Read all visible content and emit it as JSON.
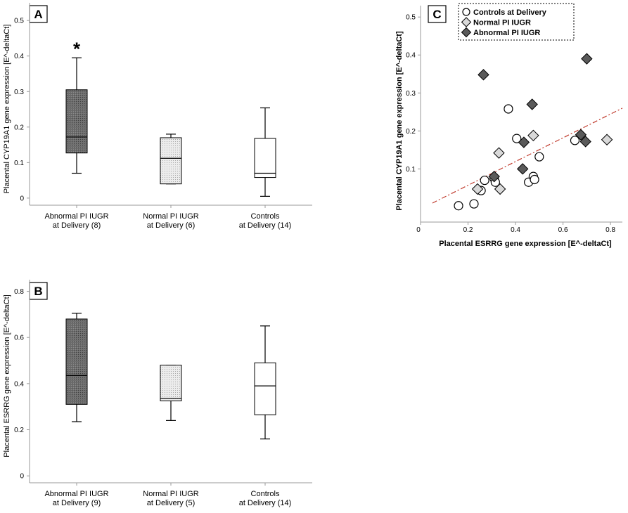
{
  "colors": {
    "abnormal": "#5a5a5a",
    "normal": "#d9d9d9",
    "control": "#ffffff",
    "regression": "#c0392b",
    "axis": "#9a9a9a"
  },
  "chart_data": [
    {
      "panel": "A",
      "type": "box",
      "ylabel": "Placental CYP19A1 gene expression [E^-deltaCt]",
      "ylim": [
        -0.02,
        0.53
      ],
      "yticks": [
        0,
        0.1,
        0.2,
        0.3,
        0.4,
        0.5
      ],
      "ytick_labels": [
        "0",
        "0.1",
        "0.2",
        "0.3",
        "0.4",
        "0.5"
      ],
      "categories": [
        {
          "line1": "Abnormal PI IUGR",
          "line2": "at Delivery (8)"
        },
        {
          "line1": "Normal PI IUGR",
          "line2": "at Delivery (6)"
        },
        {
          "line1": "Controls",
          "line2": "at Delivery (14)"
        }
      ],
      "boxes": [
        {
          "group": "abnormal",
          "whisker_low": 0.07,
          "q1": 0.127,
          "median": 0.172,
          "q3": 0.305,
          "whisker_high": 0.395
        },
        {
          "group": "normal",
          "whisker_low": 0.04,
          "q1": 0.04,
          "median": 0.112,
          "q3": 0.17,
          "whisker_high": 0.18
        },
        {
          "group": "control",
          "whisker_low": 0.005,
          "q1": 0.058,
          "median": 0.07,
          "q3": 0.168,
          "whisker_high": 0.254
        }
      ],
      "annotation": {
        "text": "*",
        "category_index": 0,
        "value": 0.43
      }
    },
    {
      "panel": "B",
      "type": "box",
      "ylabel": "Placental ESRRG gene expression [E^-deltaCt]",
      "ylim": [
        -0.03,
        0.82
      ],
      "yticks": [
        0,
        0.2,
        0.4,
        0.6,
        0.8
      ],
      "ytick_labels": [
        "0",
        "0.2",
        "0.4",
        "0.6",
        "0.8"
      ],
      "categories": [
        {
          "line1": "Abnormal PI IUGR",
          "line2": "at Delivery (9)"
        },
        {
          "line1": "Normal PI IUGR",
          "line2": "at Delivery (5)"
        },
        {
          "line1": "Controls",
          "line2": "at Delivery (14)"
        }
      ],
      "boxes": [
        {
          "group": "abnormal",
          "whisker_low": 0.235,
          "q1": 0.31,
          "median": 0.435,
          "q3": 0.68,
          "whisker_high": 0.705
        },
        {
          "group": "normal",
          "whisker_low": 0.24,
          "q1": 0.325,
          "median": 0.335,
          "q3": 0.48,
          "whisker_high": 0.48
        },
        {
          "group": "control",
          "whisker_low": 0.16,
          "q1": 0.265,
          "median": 0.39,
          "q3": 0.49,
          "whisker_high": 0.65
        }
      ]
    },
    {
      "panel": "C",
      "type": "scatter",
      "xlabel": "Placental ESRRG gene expression [E^-deltaCt]",
      "ylabel": "Placental CYP19A1 gene expression [E^-deltaCt]",
      "xlim": [
        0,
        0.85
      ],
      "ylim": [
        -0.04,
        0.53
      ],
      "xticks": [
        0,
        0.2,
        0.4,
        0.6,
        0.8
      ],
      "xtick_labels": [
        "0",
        "0.2",
        "0.4",
        "0.6",
        "0.8"
      ],
      "yticks": [
        0.1,
        0.2,
        0.3,
        0.4,
        0.5
      ],
      "ytick_labels": [
        "0.1",
        "0.2",
        "0.3",
        "0.4",
        "0.5"
      ],
      "legend": {
        "placement": "top-right",
        "entries": [
          {
            "label": "Controls at Delivery",
            "group": "control",
            "marker": "circle"
          },
          {
            "label": "Normal PI IUGR",
            "group": "normal",
            "marker": "diamond"
          },
          {
            "label": "Abnormal PI IUGR",
            "group": "abnormal",
            "marker": "diamond"
          }
        ]
      },
      "series": [
        {
          "name": "Controls at Delivery",
          "group": "control",
          "marker": "circle",
          "points": [
            [
              0.16,
              0.003
            ],
            [
              0.225,
              0.008
            ],
            [
              0.255,
              0.043
            ],
            [
              0.27,
              0.07
            ],
            [
              0.31,
              0.075
            ],
            [
              0.315,
              0.065
            ],
            [
              0.37,
              0.258
            ],
            [
              0.405,
              0.18
            ],
            [
              0.455,
              0.065
            ],
            [
              0.475,
              0.08
            ],
            [
              0.48,
              0.072
            ],
            [
              0.5,
              0.132
            ],
            [
              0.65,
              0.175
            ]
          ]
        },
        {
          "name": "Normal PI IUGR",
          "group": "normal",
          "marker": "diamond",
          "points": [
            [
              0.24,
              0.047
            ],
            [
              0.33,
              0.142
            ],
            [
              0.335,
              0.047
            ],
            [
              0.475,
              0.188
            ],
            [
              0.785,
              0.177
            ]
          ]
        },
        {
          "name": "Abnormal PI IUGR",
          "group": "abnormal",
          "marker": "diamond",
          "points": [
            [
              0.265,
              0.348
            ],
            [
              0.31,
              0.08
            ],
            [
              0.43,
              0.1
            ],
            [
              0.435,
              0.17
            ],
            [
              0.47,
              0.27
            ],
            [
              0.675,
              0.19
            ],
            [
              0.695,
              0.172
            ],
            [
              0.7,
              0.39
            ]
          ]
        }
      ],
      "regression": {
        "x0": 0.05,
        "y0": 0.01,
        "x1": 0.85,
        "y1": 0.26
      }
    }
  ]
}
